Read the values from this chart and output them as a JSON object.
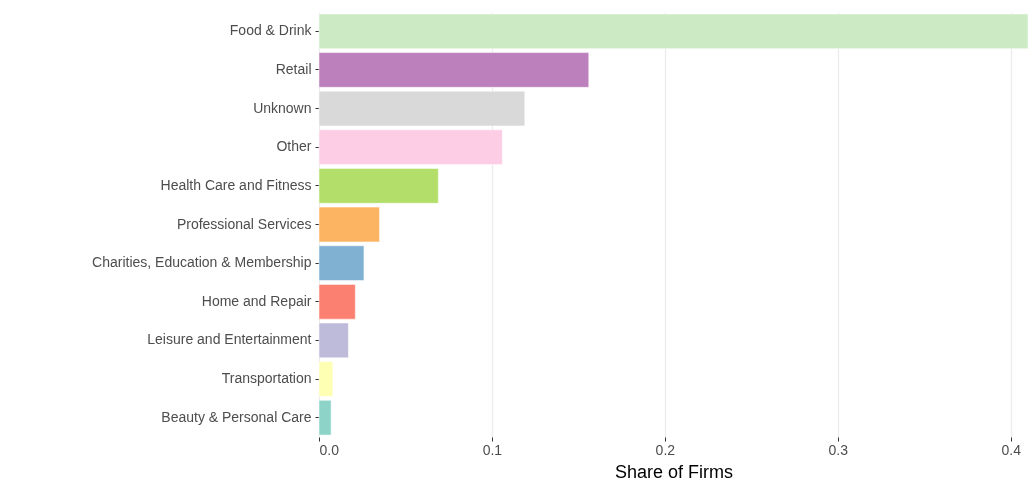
{
  "chart_data": {
    "type": "bar",
    "orientation": "horizontal",
    "xlabel": "Share of Firms",
    "categories": [
      "Food & Drink",
      "Retail",
      "Unknown",
      "Other",
      "Health Care and Fitness",
      "Professional Services",
      "Charities, Education & Membership",
      "Home and Repair",
      "Leisure and Entertainment",
      "Transportation",
      "Beauty & Personal Care"
    ],
    "values": [
      0.41,
      0.156,
      0.119,
      0.106,
      0.069,
      0.035,
      0.026,
      0.021,
      0.017,
      0.008,
      0.007
    ],
    "colors": [
      "#ccebc5",
      "#bc80bd",
      "#d9d9d9",
      "#fccde5",
      "#b3de69",
      "#fdb462",
      "#80b1d3",
      "#fb8072",
      "#bebada",
      "#ffffb3",
      "#8dd3c7"
    ],
    "xlim": [
      0,
      0.41
    ],
    "xticks": [
      {
        "value": 0,
        "label": "0.0"
      },
      0.1,
      0.2,
      0.3,
      0.4
    ],
    "grid": "x"
  }
}
